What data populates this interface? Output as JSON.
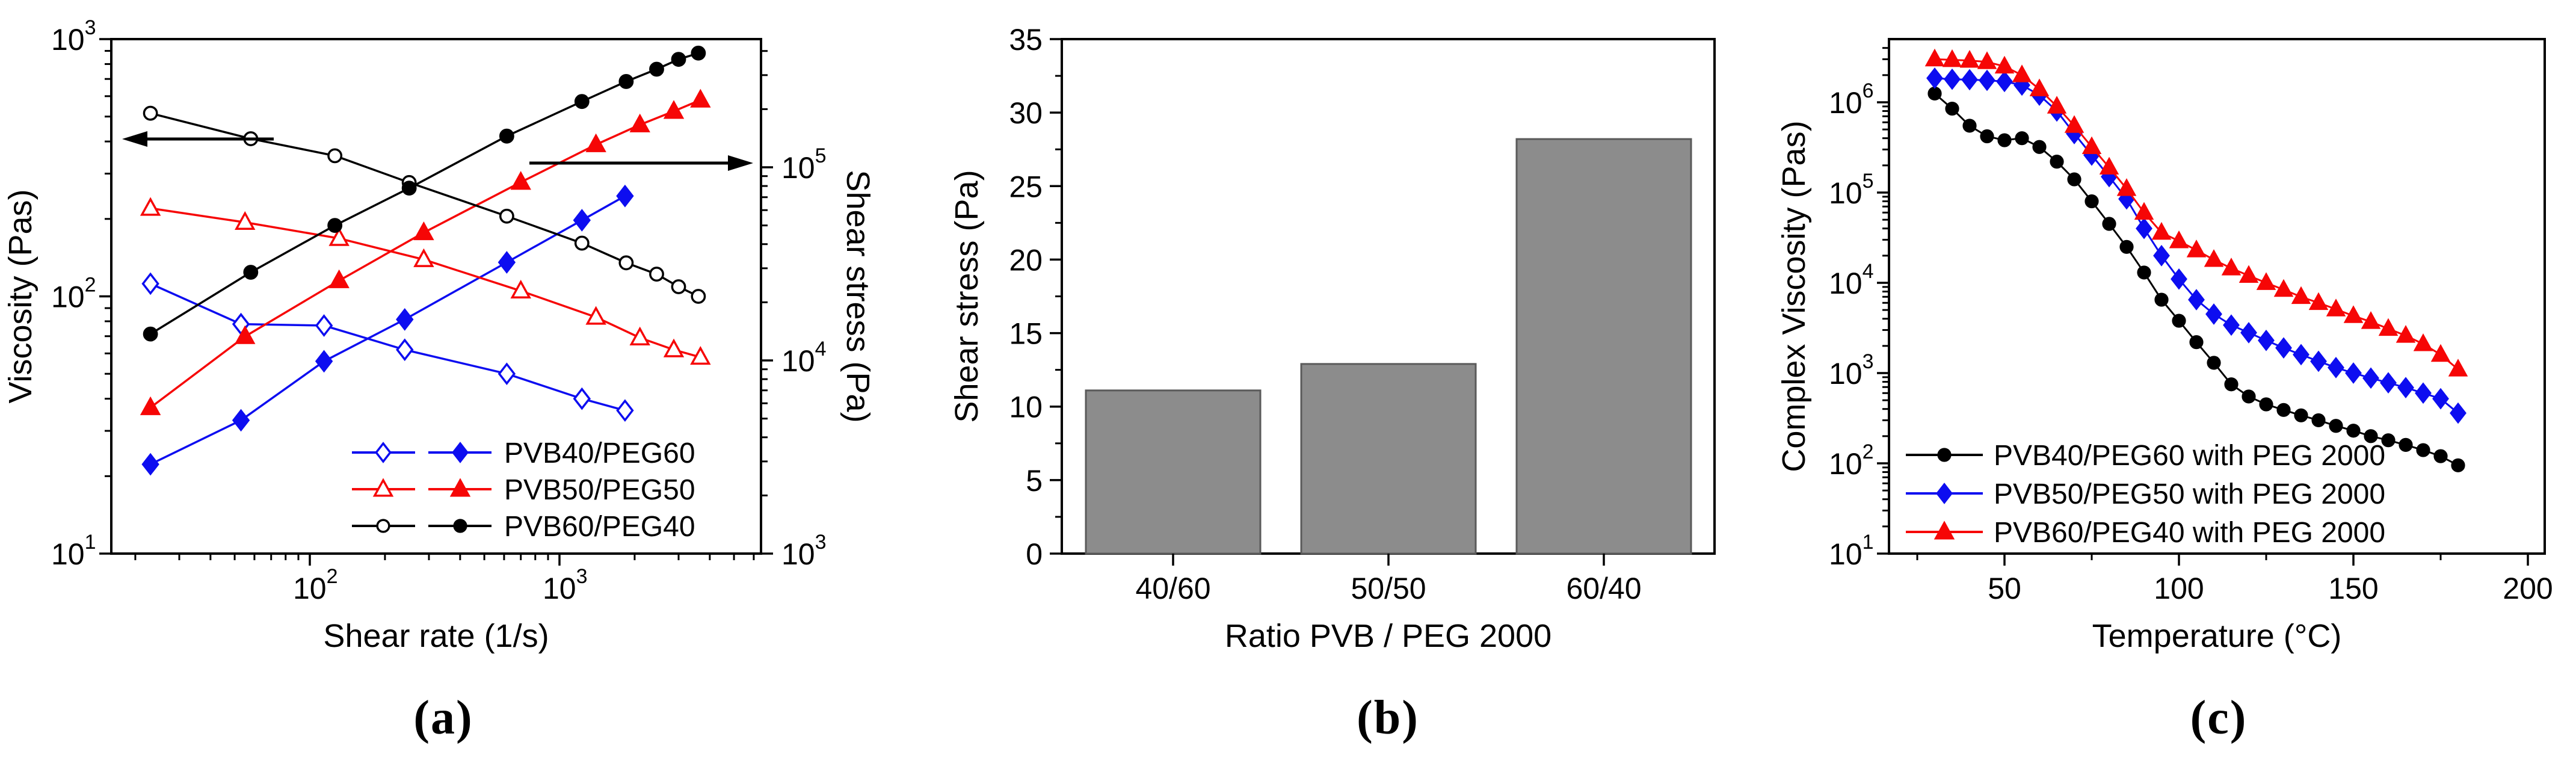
{
  "captions": [
    "(a)",
    "(b)",
    "(c)"
  ],
  "colors": {
    "blue": "#0d0df0",
    "red": "#f60606",
    "black": "#000000",
    "bar": "#8c8c8c",
    "bar_edge": "#5a5a5a",
    "axis": "#000000"
  },
  "chart_data": [
    {
      "id": "a",
      "type": "line",
      "xlabel": "Shear rate (1/s)",
      "ylabel_left": "Viscosity (Pas)",
      "ylabel_right": "Shear stress (Pa)",
      "x_scale": "log",
      "xlim": [
        16,
        6400
      ],
      "x_major_exponents": [
        2,
        3
      ],
      "ylim_left": [
        10,
        1000
      ],
      "y_left_major_exponents": [
        1,
        2,
        3
      ],
      "ylim_right": [
        1000,
        460000
      ],
      "y_right_major_exponents": [
        3,
        4,
        5
      ],
      "grid": false,
      "annotations": [
        "arrow-left-to-viscosity-axis",
        "arrow-right-to-stress-axis"
      ],
      "legend_position": "inside-bottom-center-right",
      "legend": [
        {
          "label": "PVB40/PEG60",
          "color": "blue",
          "marker": "diamond"
        },
        {
          "label": "PVB50/PEG50",
          "color": "red",
          "marker": "triangle"
        },
        {
          "label": "PVB60/PEG40",
          "color": "black",
          "marker": "circle"
        }
      ],
      "series": [
        {
          "name": "PVB40/PEG60 viscosity",
          "axis": "left",
          "color": "blue",
          "marker": "diamond",
          "open": true,
          "x": [
            23,
            53,
            114,
            240,
            615,
            1230,
            1830
          ],
          "y": [
            112,
            78,
            77,
            62,
            50,
            40,
            36
          ]
        },
        {
          "name": "PVB40/PEG60 shear stress",
          "axis": "right",
          "color": "blue",
          "marker": "diamond",
          "open": false,
          "x": [
            23,
            53,
            114,
            240,
            615,
            1230,
            1830
          ],
          "y": [
            2900,
            4900,
            9900,
            16300,
            32200,
            53200,
            71000
          ]
        },
        {
          "name": "PVB50/PEG50 viscosity",
          "axis": "left",
          "color": "red",
          "marker": "triangle",
          "open": true,
          "x": [
            23,
            55,
            131,
            286,
            700,
            1400,
            2100,
            2870,
            3670
          ],
          "y": [
            220,
            194,
            168,
            139,
            105,
            83,
            69,
            62,
            58
          ]
        },
        {
          "name": "PVB50/PEG50 shear stress",
          "axis": "right",
          "color": "red",
          "marker": "triangle",
          "open": false,
          "x": [
            23,
            55,
            131,
            286,
            700,
            1400,
            2100,
            2870,
            3670
          ],
          "y": [
            5700,
            13300,
            25900,
            45900,
            83700,
            131000,
            166000,
            195000,
            223000
          ]
        },
        {
          "name": "PVB60/PEG40 viscosity",
          "axis": "left",
          "color": "black",
          "marker": "circle",
          "open": true,
          "x": [
            23,
            58,
            126,
            250,
            615,
            1230,
            1850,
            2450,
            3000,
            3600
          ],
          "y": [
            515,
            410,
            352,
            277,
            205,
            161,
            135,
            122,
            109,
            100
          ]
        },
        {
          "name": "PVB60/PEG40 shear stress",
          "axis": "right",
          "color": "black",
          "marker": "circle",
          "open": false,
          "x": [
            23,
            58,
            126,
            250,
            615,
            1230,
            1850,
            2450,
            3000,
            3600
          ],
          "y": [
            13700,
            28600,
            50000,
            78000,
            145000,
            219000,
            278000,
            322000,
            362000,
            390000
          ]
        }
      ]
    },
    {
      "id": "b",
      "type": "bar",
      "xlabel": "Ratio PVB / PEG 2000",
      "ylabel": "Shear stress (Pa)",
      "categories": [
        "40/60",
        "50/50",
        "60/40"
      ],
      "values": [
        11.1,
        12.9,
        28.2
      ],
      "ylim": [
        0,
        35
      ],
      "ytick_step": 5,
      "yminor_step": 2.5,
      "grid": false,
      "bar_color": "bar"
    },
    {
      "id": "c",
      "type": "line",
      "xlabel": "Temperature (°C)",
      "ylabel": "Complex Viscosity (Pas)",
      "xlim": [
        17,
        204
      ],
      "x_ticks": [
        50,
        100,
        150,
        200
      ],
      "x_minor_ticks": [
        25,
        75,
        125,
        175
      ],
      "y_scale": "log",
      "ylim": [
        10,
        5000000
      ],
      "y_major_exponents": [
        1,
        2,
        3,
        4,
        5,
        6
      ],
      "grid": false,
      "legend_position": "inside-bottom-left",
      "x": [
        30,
        35,
        40,
        45,
        50,
        55,
        60,
        65,
        70,
        75,
        80,
        85,
        90,
        95,
        100,
        105,
        110,
        115,
        120,
        125,
        130,
        135,
        140,
        145,
        150,
        155,
        160,
        165,
        170,
        175,
        180
      ],
      "series": [
        {
          "name": "PVB40/PEG60 with PEG 2000",
          "color": "black",
          "marker": "circle",
          "open": false,
          "y": [
            1250000,
            850000,
            550000,
            420000,
            380000,
            400000,
            320000,
            220000,
            140000,
            80000,
            45000,
            25000,
            13000,
            6500,
            3800,
            2200,
            1300,
            750,
            550,
            450,
            390,
            340,
            300,
            260,
            230,
            200,
            180,
            160,
            140,
            120,
            95
          ]
        },
        {
          "name": "PVB50/PEG50 with PEG 2000",
          "color": "blue",
          "marker": "diamond",
          "open": false,
          "y": [
            1850000,
            1800000,
            1780000,
            1750000,
            1700000,
            1550000,
            1200000,
            800000,
            450000,
            260000,
            150000,
            85000,
            40000,
            20000,
            11000,
            6500,
            4500,
            3400,
            2800,
            2300,
            1900,
            1600,
            1350,
            1150,
            1000,
            880,
            780,
            690,
            600,
            520,
            360
          ]
        },
        {
          "name": "PVB60/PEG40 with PEG 2000",
          "color": "red",
          "marker": "triangle",
          "open": false,
          "y": [
            3000000,
            2950000,
            2900000,
            2800000,
            2500000,
            2000000,
            1400000,
            900000,
            550000,
            320000,
            190000,
            110000,
            60000,
            36000,
            29000,
            23000,
            18000,
            14500,
            12000,
            10000,
            8400,
            7000,
            6000,
            5100,
            4300,
            3700,
            3100,
            2600,
            2100,
            1600,
            1100
          ]
        }
      ]
    }
  ]
}
